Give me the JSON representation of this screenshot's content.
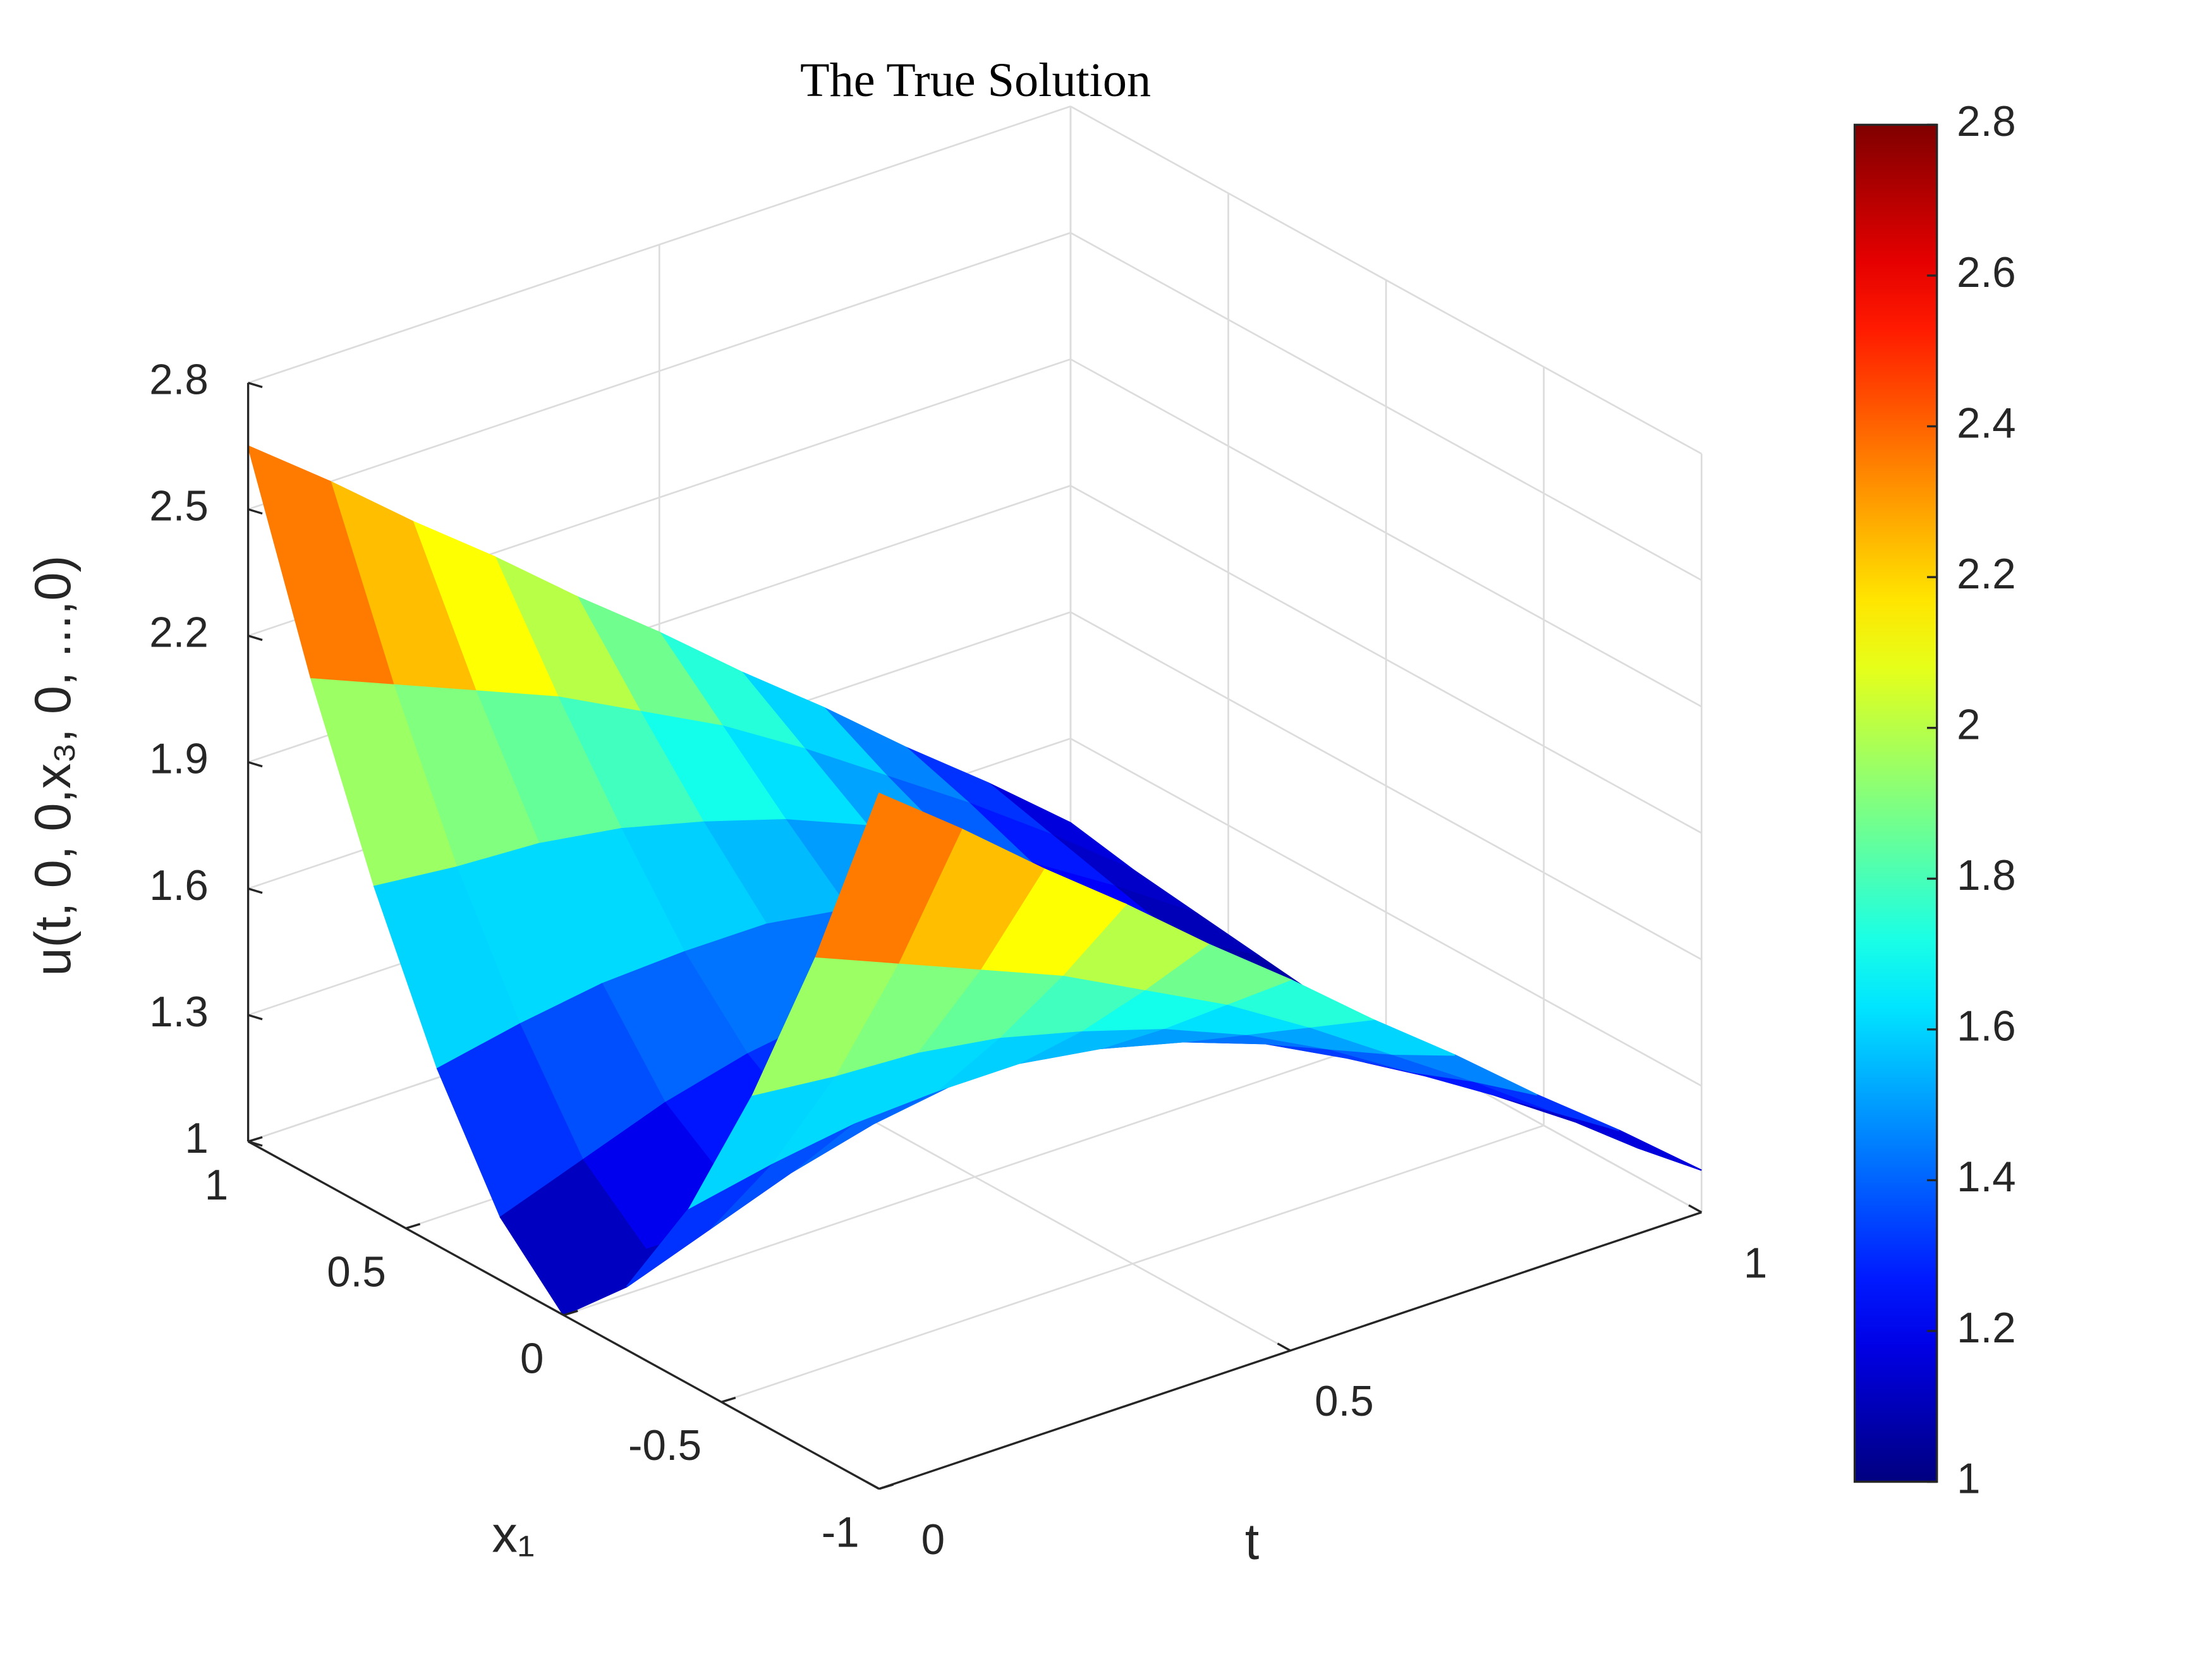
{
  "chart_data": {
    "type": "surface3d",
    "title": "The True Solution",
    "xlabel": "t",
    "ylabel": "x₁",
    "zlabel": "u(t, 0, 0,x₃, 0, ...,0)",
    "x": [
      0,
      0.1,
      0.2,
      0.3,
      0.4,
      0.5,
      0.6,
      0.7,
      0.8,
      0.9,
      1
    ],
    "y": [
      -1,
      -0.8,
      -0.6,
      -0.4,
      -0.2,
      0,
      0.2,
      0.4,
      0.6,
      0.8,
      1
    ],
    "z": [
      [
        2.65,
        2.18,
        1.77,
        1.42,
        1.15,
        1,
        1.15,
        1.42,
        1.77,
        2.18,
        2.65
      ],
      [
        2.5,
        2.1,
        1.75,
        1.46,
        1.22,
        1.09,
        1.22,
        1.46,
        1.75,
        2.1,
        2.5
      ],
      [
        2.34,
        2.02,
        1.74,
        1.49,
        1.29,
        1.18,
        1.29,
        1.49,
        1.74,
        2.02,
        2.34
      ],
      [
        2.19,
        1.94,
        1.71,
        1.5,
        1.34,
        1.24,
        1.34,
        1.5,
        1.71,
        1.94,
        2.19
      ],
      [
        2.03,
        1.84,
        1.66,
        1.5,
        1.37,
        1.29,
        1.37,
        1.5,
        1.66,
        1.84,
        2.03
      ],
      [
        1.88,
        1.74,
        1.6,
        1.47,
        1.37,
        1.3,
        1.37,
        1.47,
        1.6,
        1.74,
        1.88
      ],
      [
        1.72,
        1.62,
        1.52,
        1.42,
        1.34,
        1.29,
        1.34,
        1.42,
        1.52,
        1.62,
        1.72
      ],
      [
        1.57,
        1.49,
        1.42,
        1.35,
        1.28,
        1.24,
        1.28,
        1.35,
        1.42,
        1.49,
        1.57
      ],
      [
        1.41,
        1.36,
        1.3,
        1.25,
        1.21,
        1.18,
        1.21,
        1.25,
        1.3,
        1.36,
        1.41
      ],
      [
        1.26,
        1.22,
        1.18,
        1.14,
        1.11,
        1.09,
        1.11,
        1.14,
        1.18,
        1.22,
        1.26
      ],
      [
        1.1,
        1.07,
        1.05,
        1.03,
        1.01,
        1,
        1.01,
        1.03,
        1.05,
        1.07,
        1.1
      ]
    ],
    "xlim": [
      0,
      1
    ],
    "xticks": [
      0,
      0.5,
      1
    ],
    "ylim": [
      -1,
      1
    ],
    "yticks": [
      -1,
      -0.5,
      0,
      0.5,
      1
    ],
    "zlim": [
      1,
      2.8
    ],
    "zticks": [
      1,
      1.3,
      1.6,
      1.9,
      2.2,
      2.5,
      2.8
    ],
    "colormap": "jet",
    "clim": [
      1,
      2.8
    ],
    "colorbar_ticks": [
      1,
      1.2,
      1.4,
      1.6,
      1.8,
      2,
      2.2,
      2.4,
      2.6,
      2.8
    ],
    "grid": true
  }
}
